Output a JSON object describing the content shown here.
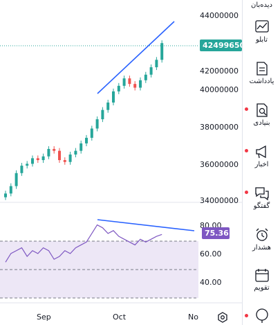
{
  "sidebar": {
    "items": [
      {
        "label": "دیده‌بان",
        "icon": "watchlist-icon"
      },
      {
        "label": "تابلو",
        "icon": "board-chart-icon"
      },
      {
        "label": "یادداشت",
        "icon": "notes-icon"
      },
      {
        "label": "بنیادی",
        "icon": "fundamentals-search-icon"
      },
      {
        "label": "اخبار",
        "icon": "news-megaphone-icon"
      },
      {
        "label": "گفتگو",
        "icon": "chat-bubbles-icon"
      },
      {
        "label": "هشدار",
        "icon": "alarm-clock-icon"
      },
      {
        "label": "تقویم",
        "icon": "calendar-icon"
      },
      {
        "label": "",
        "icon": "ideas-bulb-icon"
      }
    ]
  },
  "price_axis": {
    "ticks": [
      "44000000",
      "42000000",
      "40000000",
      "38000000",
      "36000000",
      "34000000"
    ],
    "last_price": "42499650"
  },
  "rsi_axis": {
    "ticks": [
      "80.00",
      "60.00",
      "40.00"
    ],
    "current_value": "75.36"
  },
  "time_axis": {
    "labels": [
      "Sep",
      "Oct",
      "No"
    ]
  },
  "colors": {
    "up": "#26a69a",
    "down": "#ef5350",
    "trendline": "#2962ff",
    "rsi_line": "#7e57c2",
    "rsi_band": "#ede7f6",
    "accent_badge": "#26a69a"
  },
  "chart_data": {
    "type": "candlestick",
    "series": [
      {
        "name": "price",
        "values": [
          34400000,
          34800000,
          35500000,
          35900000,
          36000000,
          36300000,
          36200000,
          36400000,
          36800000,
          36700000,
          36200000,
          36100000,
          36500000,
          36700000,
          37100000,
          37400000,
          37900000,
          38400000,
          38900000,
          39300000,
          39900000,
          40200000,
          40600000,
          40300000,
          40100000,
          40500000,
          40800000,
          41200000,
          41600000,
          42499650
        ]
      },
      {
        "name": "rsi",
        "values": [
          56,
          62,
          64,
          66,
          60,
          64,
          62,
          66,
          64,
          58,
          60,
          64,
          62,
          66,
          68,
          70,
          76,
          82,
          80,
          76,
          78,
          74,
          72,
          70,
          68,
          72,
          70,
          72,
          74,
          75.36
        ]
      }
    ],
    "price_range": [
      34000000,
      44000000
    ],
    "rsi_range": [
      30,
      90
    ],
    "rsi_bands": [
      70,
      50,
      30
    ]
  }
}
